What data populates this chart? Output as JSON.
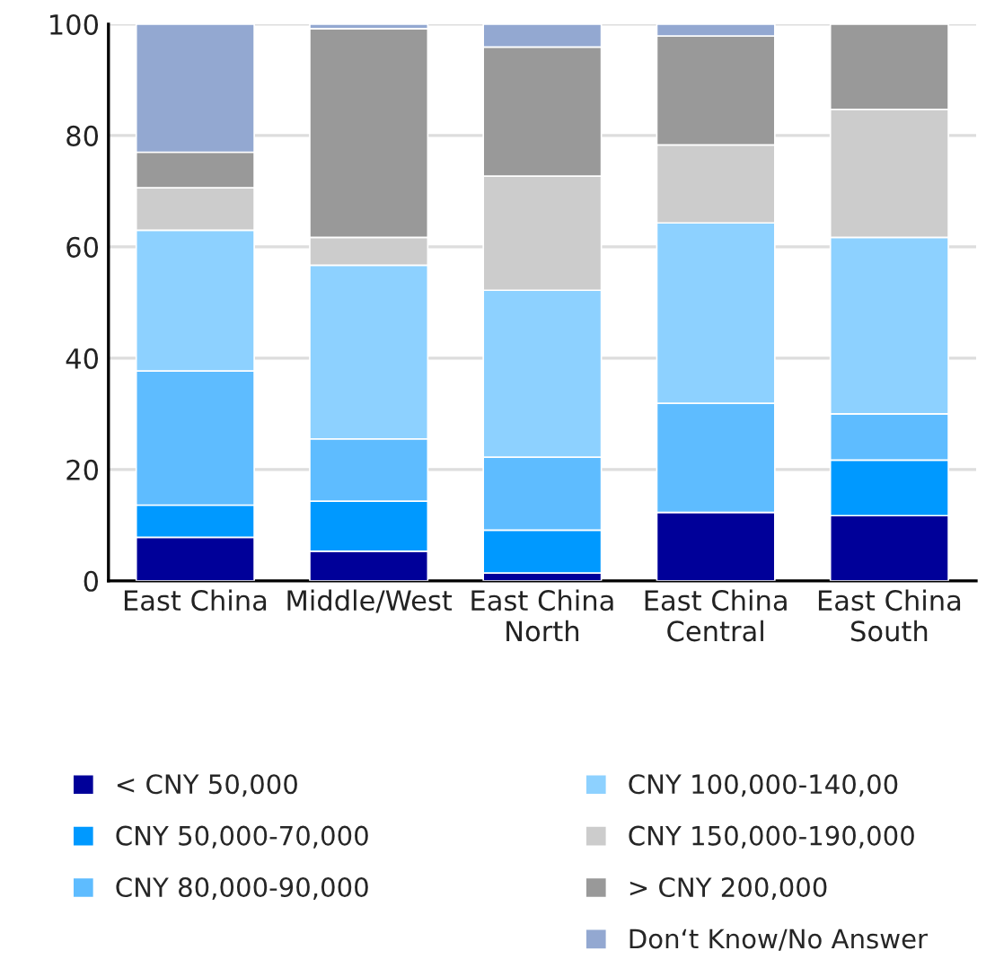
{
  "chart_data": {
    "type": "bar",
    "stacked": true,
    "categories": [
      "East China",
      "Middle/West",
      "East China\nNorth",
      "East China\nCentral",
      "East China\nSouth"
    ],
    "series": [
      {
        "name": "< CNY 50,000",
        "color": "#000099",
        "values": [
          7.8,
          5.3,
          1.4,
          12.3,
          11.7
        ]
      },
      {
        "name": "CNY 50,000-70,000",
        "color": "#0099ff",
        "values": [
          5.8,
          9.0,
          7.7,
          0,
          10.0
        ]
      },
      {
        "name": "CNY 80,000-90,000",
        "color": "#5ebcff",
        "values": [
          24.1,
          11.2,
          13.1,
          19.6,
          8.3
        ]
      },
      {
        "name": "CNY 100,000-140,00",
        "color": "#8dd1ff",
        "values": [
          25.3,
          31.2,
          30.0,
          32.4,
          31.7
        ]
      },
      {
        "name": "CNY 150,000-190,000",
        "color": "#cccccc",
        "values": [
          7.6,
          5.0,
          20.5,
          14.0,
          23.0
        ]
      },
      {
        "name": "> CNY 200,000",
        "color": "#999999",
        "values": [
          6.4,
          37.5,
          23.2,
          19.6,
          15.3
        ]
      },
      {
        "name": "Don‘t Know/No Answer",
        "color": "#93a8d1",
        "values": [
          23.0,
          0.8,
          4.1,
          2.1,
          0
        ]
      }
    ],
    "ylim": [
      0,
      100
    ],
    "yticks": [
      0,
      20,
      40,
      60,
      80,
      100
    ],
    "grid": "y",
    "legend": "bottom"
  }
}
